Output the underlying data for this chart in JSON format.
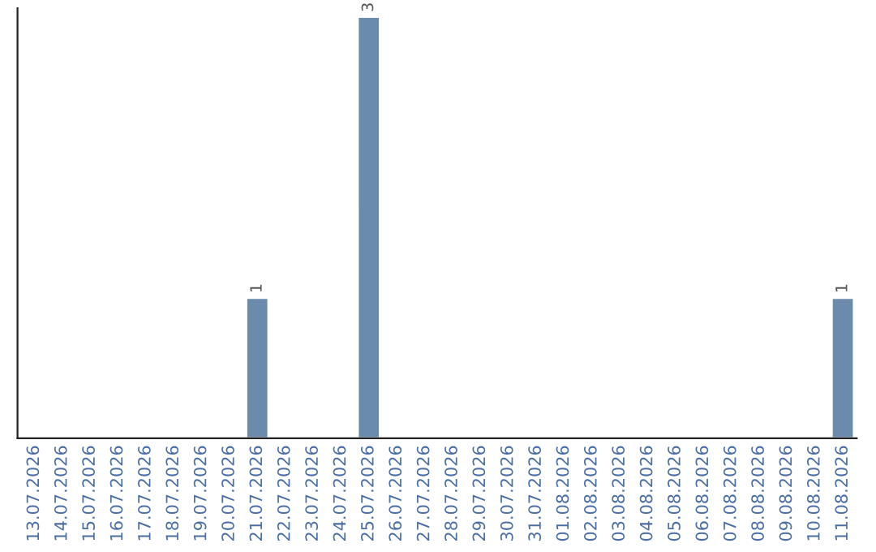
{
  "chart_data": {
    "type": "bar",
    "categories": [
      "13.07.2026",
      "14.07.2026",
      "15.07.2026",
      "16.07.2026",
      "17.07.2026",
      "18.07.2026",
      "19.07.2026",
      "20.07.2026",
      "21.07.2026",
      "22.07.2026",
      "23.07.2026",
      "24.07.2026",
      "25.07.2026",
      "26.07.2026",
      "27.07.2026",
      "28.07.2026",
      "29.07.2026",
      "30.07.2026",
      "31.07.2026",
      "01.08.2026",
      "02.08.2026",
      "03.08.2026",
      "04.08.2026",
      "05.08.2026",
      "06.08.2026",
      "07.08.2026",
      "08.08.2026",
      "09.08.2026",
      "10.08.2026",
      "11.08.2026"
    ],
    "values": [
      0,
      0,
      0,
      0,
      0,
      0,
      0,
      0,
      1,
      0,
      0,
      0,
      3,
      0,
      0,
      0,
      0,
      0,
      0,
      0,
      0,
      0,
      0,
      0,
      0,
      0,
      0,
      0,
      0,
      1
    ],
    "value_labels": [
      null,
      null,
      null,
      null,
      null,
      null,
      null,
      null,
      "1",
      null,
      null,
      null,
      "3",
      null,
      null,
      null,
      null,
      null,
      null,
      null,
      null,
      null,
      null,
      null,
      null,
      null,
      null,
      null,
      null,
      "1"
    ],
    "color": "#6a8bab",
    "tick_labels": "x",
    "grid": false,
    "legend": false
  }
}
